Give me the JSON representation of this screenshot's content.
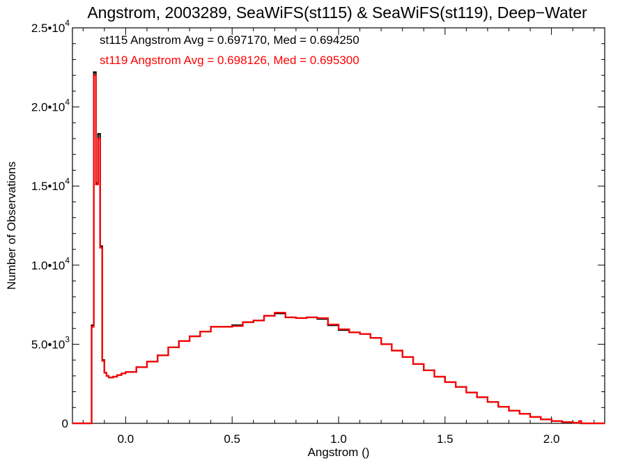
{
  "chart_data": {
    "type": "line",
    "title": "Angstrom, 2003289, SeaWiFS(st115) & SeaWiFS(st119), Deep−Water",
    "xlabel": "Angstrom ()",
    "ylabel": "Number of Observations",
    "xlim": [
      -0.25,
      2.25
    ],
    "ylim": [
      0,
      25000
    ],
    "grid": false,
    "x_ticks": [
      {
        "value": 0.0,
        "label": "0.0"
      },
      {
        "value": 0.5,
        "label": "0.5"
      },
      {
        "value": 1.0,
        "label": "1.0"
      },
      {
        "value": 1.5,
        "label": "1.5"
      },
      {
        "value": 2.0,
        "label": "2.0"
      }
    ],
    "y_ticks": [
      {
        "value": 0,
        "mant": "0",
        "exp": ""
      },
      {
        "value": 5000,
        "mant": "5.0•10",
        "exp": "3"
      },
      {
        "value": 10000,
        "mant": "1.0•10",
        "exp": "4"
      },
      {
        "value": 15000,
        "mant": "1.5•10",
        "exp": "4"
      },
      {
        "value": 20000,
        "mant": "2.0•10",
        "exp": "4"
      },
      {
        "value": 25000,
        "mant": "2.5•10",
        "exp": "4"
      }
    ],
    "annotations": [
      {
        "text": "st115 Angstrom Avg = 0.697170, Med = 0.694250",
        "color": "#000000"
      },
      {
        "text": "st119 Angstrom Avg = 0.698126, Med = 0.695300",
        "color": "#ff0000"
      }
    ],
    "series": [
      {
        "color": "#000000",
        "x": [
          -0.25,
          -0.16,
          -0.15,
          -0.14,
          -0.13,
          -0.12,
          -0.11,
          -0.1,
          -0.09,
          -0.08,
          -0.06,
          -0.04,
          -0.02,
          0.0,
          0.05,
          0.1,
          0.15,
          0.2,
          0.25,
          0.3,
          0.35,
          0.4,
          0.45,
          0.5,
          0.55,
          0.6,
          0.65,
          0.7,
          0.75,
          0.8,
          0.85,
          0.9,
          0.95,
          1.0,
          1.05,
          1.1,
          1.15,
          1.2,
          1.25,
          1.3,
          1.35,
          1.4,
          1.45,
          1.5,
          1.55,
          1.6,
          1.65,
          1.7,
          1.75,
          1.8,
          1.85,
          1.9,
          1.95,
          2.0,
          2.05,
          2.1,
          2.13,
          2.14,
          2.15,
          2.25
        ],
        "y": [
          0,
          6200,
          22200,
          15200,
          18300,
          11200,
          4000,
          3200,
          3000,
          2900,
          2950,
          3050,
          3150,
          3250,
          3550,
          3900,
          4300,
          4800,
          5200,
          5500,
          5800,
          6100,
          6100,
          6200,
          6400,
          6500,
          6800,
          6950,
          6700,
          6650,
          6700,
          6600,
          6200,
          5900,
          5750,
          5650,
          5400,
          5000,
          4600,
          4200,
          3750,
          3350,
          2950,
          2600,
          2300,
          1950,
          1650,
          1350,
          1050,
          800,
          600,
          400,
          250,
          150,
          80,
          40,
          150,
          0,
          0,
          0
        ]
      },
      {
        "color": "#ff0000",
        "x": [
          -0.25,
          -0.16,
          -0.15,
          -0.14,
          -0.13,
          -0.12,
          -0.11,
          -0.1,
          -0.09,
          -0.08,
          -0.06,
          -0.04,
          -0.02,
          0.0,
          0.05,
          0.1,
          0.15,
          0.2,
          0.25,
          0.3,
          0.35,
          0.4,
          0.45,
          0.5,
          0.55,
          0.6,
          0.65,
          0.7,
          0.75,
          0.8,
          0.85,
          0.9,
          0.95,
          1.0,
          1.05,
          1.1,
          1.15,
          1.2,
          1.25,
          1.3,
          1.35,
          1.4,
          1.45,
          1.5,
          1.55,
          1.6,
          1.65,
          1.7,
          1.75,
          1.8,
          1.85,
          1.9,
          1.95,
          2.0,
          2.05,
          2.1,
          2.13,
          2.14,
          2.15,
          2.25
        ],
        "y": [
          0,
          6100,
          22000,
          15100,
          18000,
          11100,
          3950,
          3200,
          3000,
          2900,
          2950,
          3050,
          3150,
          3250,
          3550,
          3900,
          4300,
          4800,
          5200,
          5500,
          5800,
          6100,
          6100,
          6150,
          6400,
          6500,
          6800,
          7000,
          6700,
          6650,
          6700,
          6650,
          6250,
          5950,
          5750,
          5650,
          5400,
          5000,
          4600,
          4200,
          3750,
          3350,
          2950,
          2600,
          2300,
          1950,
          1650,
          1350,
          1050,
          800,
          600,
          400,
          250,
          150,
          80,
          40,
          150,
          0,
          0,
          0
        ]
      }
    ]
  }
}
